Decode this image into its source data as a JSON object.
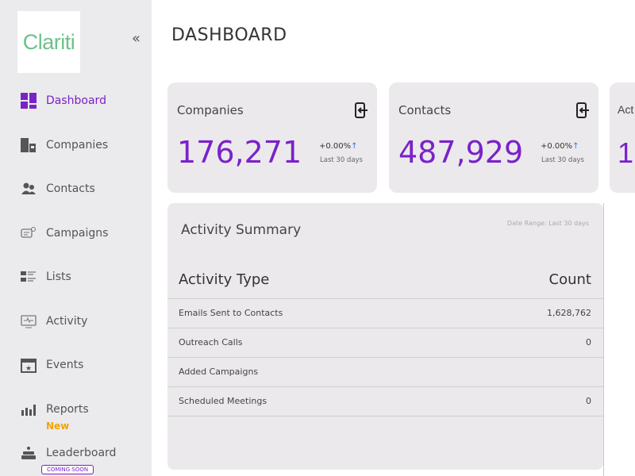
{
  "brand": {
    "logo_text": "Clariti",
    "collapse_icon": "«"
  },
  "sidebar": {
    "items": [
      {
        "label": "Dashboard",
        "icon": "dashboard-icon"
      },
      {
        "label": "Companies",
        "icon": "building-icon"
      },
      {
        "label": "Contacts",
        "icon": "users-icon"
      },
      {
        "label": "Campaigns",
        "icon": "campaign-icon"
      },
      {
        "label": "Lists",
        "icon": "list-icon"
      },
      {
        "label": "Activity",
        "icon": "monitor-activity-icon"
      },
      {
        "label": "Events",
        "icon": "calendar-star-icon"
      },
      {
        "label": "Reports",
        "icon": "bar-chart-icon",
        "badge": "New"
      },
      {
        "label": "Leaderboard",
        "icon": "podium-icon",
        "badge": "COMING SOON"
      }
    ]
  },
  "page": {
    "title": "DASHBOARD"
  },
  "cards": [
    {
      "label": "Companies",
      "value": "176,271",
      "change": "+0.00%",
      "arrow": "↑",
      "period": "Last 30 days"
    },
    {
      "label": "Contacts",
      "value": "487,929",
      "change": "+0.00%",
      "arrow": "↑",
      "period": "Last 30 days"
    },
    {
      "label": "Act",
      "value": "1"
    }
  ],
  "activity": {
    "title": "Activity Summary",
    "date_range": "Date Range: Last 30 days",
    "columns": [
      "Activity Type",
      "Count"
    ],
    "rows": [
      {
        "type": "Emails Sent to Contacts",
        "count": "1,628,762"
      },
      {
        "type": "Outreach Calls",
        "count": "0"
      },
      {
        "type": "Added Campaigns",
        "count": ""
      },
      {
        "type": "Scheduled Meetings",
        "count": "0"
      }
    ]
  },
  "colors": {
    "accent": "#7a22c9",
    "logo": "#6cc28a",
    "new_badge": "#f2a20b",
    "arrow": "#2c6ef2"
  }
}
